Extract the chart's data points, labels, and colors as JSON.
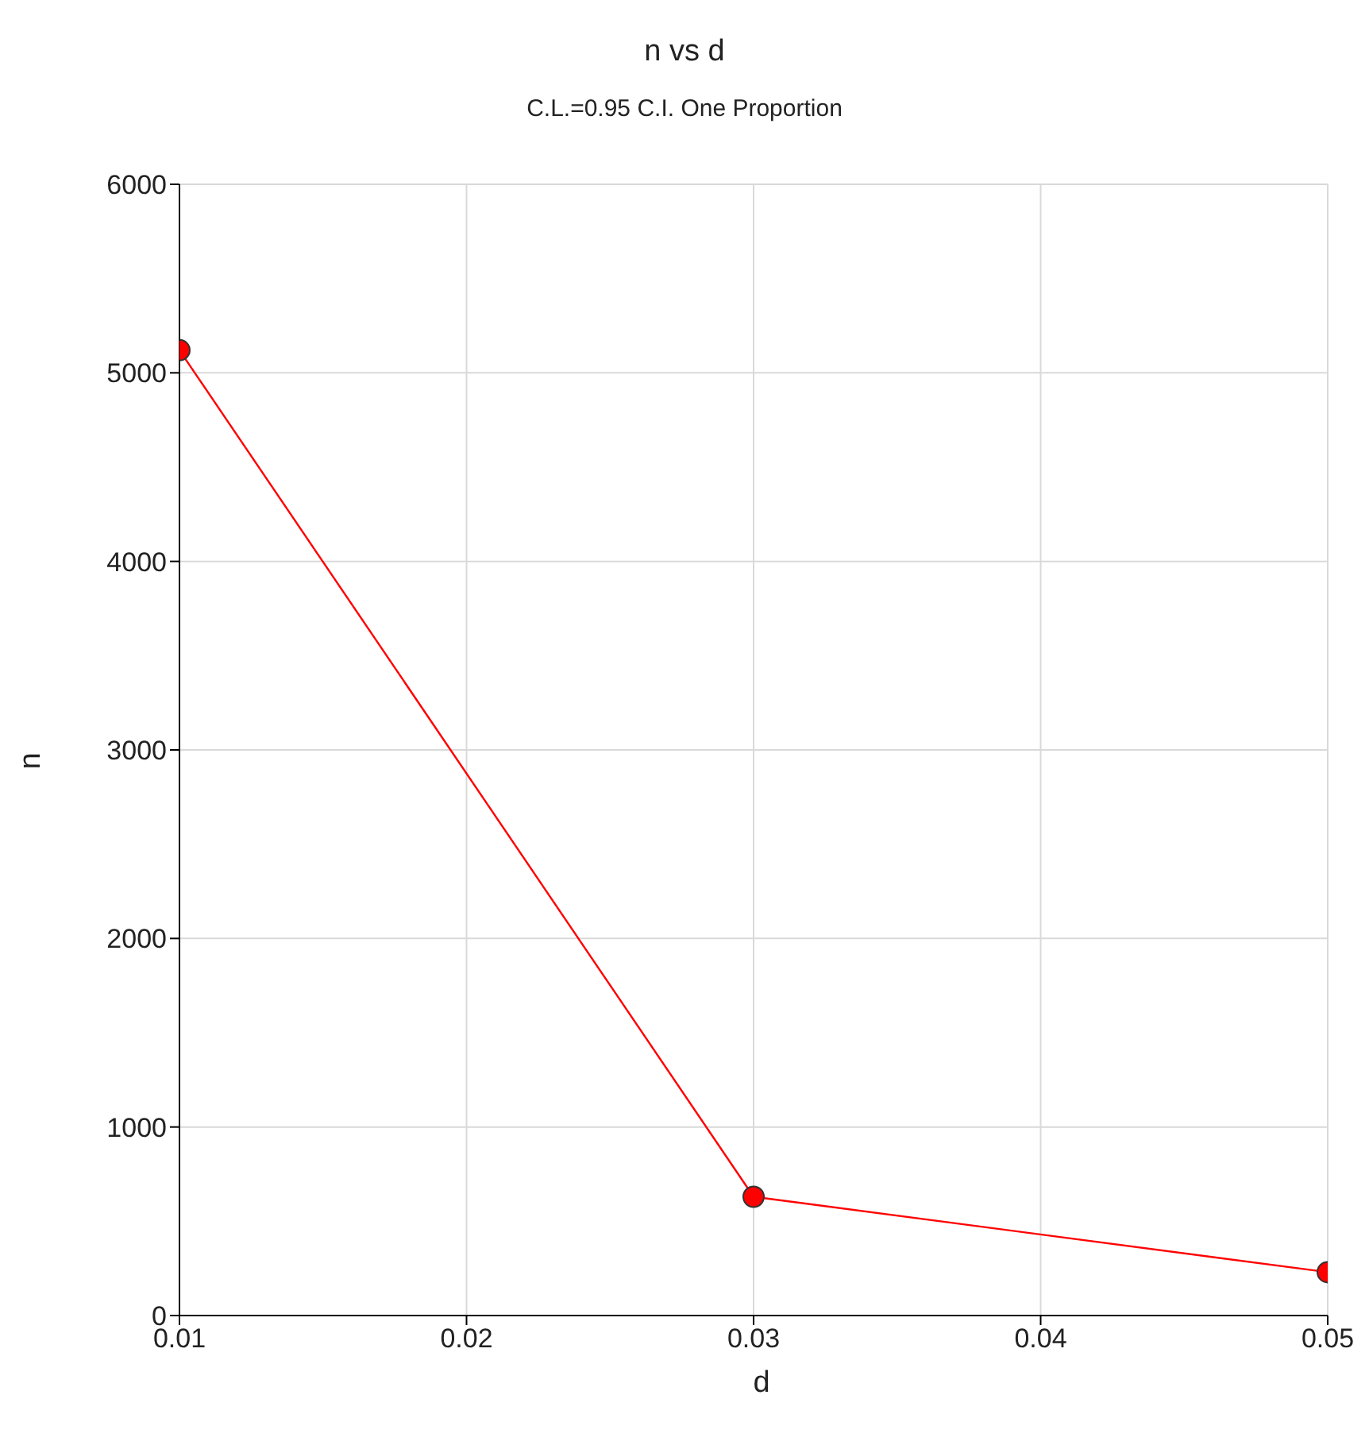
{
  "chart_data": {
    "type": "line",
    "title": "n vs d",
    "subtitle": "C.L.=0.95 C.I. One Proportion",
    "xlabel": "d",
    "ylabel": "n",
    "x": [
      0.01,
      0.03,
      0.05
    ],
    "series": [
      {
        "color": "#ff0000",
        "values": [
          5120,
          630,
          230
        ]
      }
    ],
    "xlim": [
      0.01,
      0.05
    ],
    "xticks": [
      0.01,
      0.02,
      0.03,
      0.04,
      0.05
    ],
    "ylim": [
      0,
      6000
    ],
    "yticks": [
      0,
      1000,
      2000,
      3000,
      4000,
      5000,
      6000
    ],
    "grid": true,
    "marker": "circle",
    "line_style": "solid"
  }
}
